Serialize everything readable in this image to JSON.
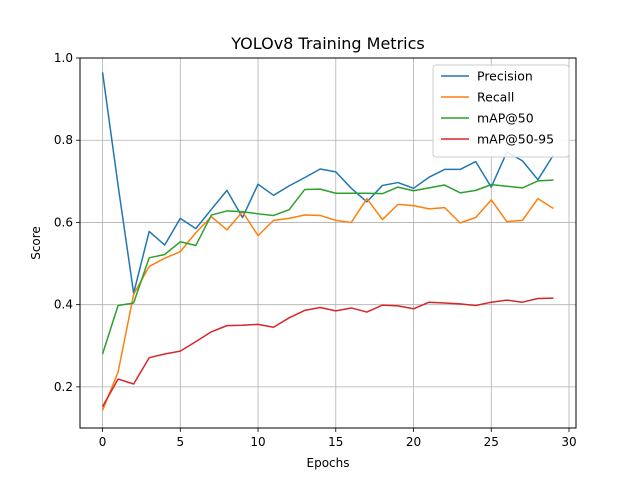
{
  "chart_data": {
    "type": "line",
    "title": "YOLOv8 Training Metrics",
    "xlabel": "Epochs",
    "ylabel": "Score",
    "xlim": [
      -1.45,
      30.45
    ],
    "ylim": [
      0.1,
      1.0
    ],
    "xticks": [
      0,
      5,
      10,
      15,
      20,
      25,
      30
    ],
    "yticks": [
      0.2,
      0.4,
      0.6,
      0.8,
      1.0
    ],
    "grid": true,
    "legend_position": "top-right",
    "x": [
      0,
      1,
      2,
      3,
      4,
      5,
      6,
      7,
      8,
      9,
      10,
      11,
      12,
      13,
      14,
      15,
      16,
      17,
      18,
      19,
      20,
      21,
      22,
      23,
      24,
      25,
      26,
      27,
      28,
      29
    ],
    "series": [
      {
        "name": "Precision",
        "color": "#1f77b4",
        "values": [
          0.965,
          0.69,
          0.428,
          0.578,
          0.545,
          0.61,
          0.585,
          0.632,
          0.678,
          0.612,
          0.693,
          0.666,
          0.689,
          0.709,
          0.73,
          0.723,
          0.683,
          0.65,
          0.69,
          0.697,
          0.683,
          0.71,
          0.729,
          0.729,
          0.748,
          0.686,
          0.771,
          0.75,
          0.704,
          0.764
        ]
      },
      {
        "name": "Recall",
        "color": "#ff7f0e",
        "values": [
          0.143,
          0.236,
          0.425,
          0.493,
          0.513,
          0.529,
          0.575,
          0.614,
          0.582,
          0.626,
          0.568,
          0.605,
          0.61,
          0.618,
          0.617,
          0.605,
          0.6,
          0.658,
          0.607,
          0.644,
          0.641,
          0.633,
          0.636,
          0.599,
          0.612,
          0.655,
          0.602,
          0.605,
          0.658,
          0.634
        ]
      },
      {
        "name": "mAP@50",
        "color": "#2ca02c",
        "values": [
          0.28,
          0.398,
          0.404,
          0.514,
          0.522,
          0.553,
          0.544,
          0.618,
          0.628,
          0.626,
          0.621,
          0.617,
          0.631,
          0.68,
          0.681,
          0.671,
          0.671,
          0.671,
          0.67,
          0.686,
          0.677,
          0.684,
          0.691,
          0.672,
          0.678,
          0.692,
          0.688,
          0.684,
          0.701,
          0.703
        ]
      },
      {
        "name": "mAP@50-95",
        "color": "#d62728",
        "values": [
          0.152,
          0.219,
          0.207,
          0.271,
          0.28,
          0.287,
          0.31,
          0.334,
          0.349,
          0.35,
          0.352,
          0.345,
          0.368,
          0.386,
          0.393,
          0.385,
          0.392,
          0.382,
          0.399,
          0.397,
          0.39,
          0.406,
          0.404,
          0.402,
          0.398,
          0.406,
          0.411,
          0.406,
          0.415,
          0.416
        ]
      }
    ]
  }
}
